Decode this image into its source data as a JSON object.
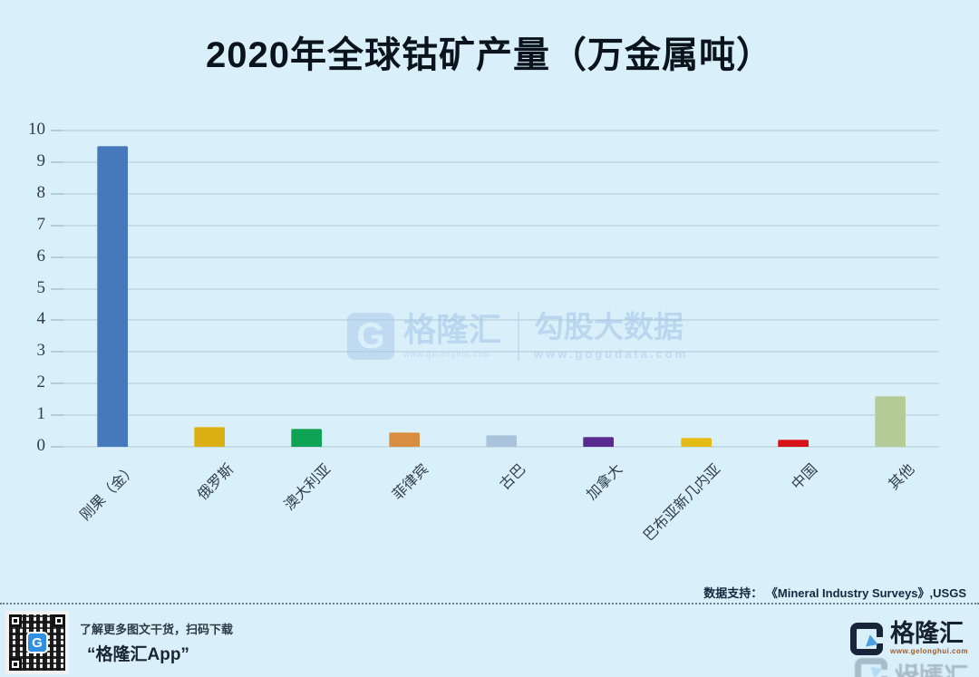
{
  "title": "2020年全球钴矿产量（万金属吨）",
  "chart_data": {
    "type": "bar",
    "title": "2020年全球钴矿产量（万金属吨）",
    "categories": [
      "刚果（金）",
      "俄罗斯",
      "澳大利亚",
      "菲律宾",
      "古巴",
      "加拿大",
      "巴布亚新几内亚",
      "中国",
      "其他"
    ],
    "values": [
      9.5,
      0.63,
      0.57,
      0.47,
      0.36,
      0.32,
      0.28,
      0.23,
      1.6
    ],
    "bar_colors": [
      "#4579bb",
      "#dcb015",
      "#0ea355",
      "#d78e42",
      "#a9c3dd",
      "#5a2b8e",
      "#e3ba16",
      "#d61318",
      "#b5cb97"
    ],
    "xlabel": "",
    "ylabel": "",
    "ylim": [
      0,
      10
    ],
    "yticks": [
      0,
      1,
      2,
      3,
      4,
      5,
      6,
      7,
      8,
      9,
      10
    ],
    "grid": true,
    "legend": false
  },
  "watermark": {
    "logo_letter": "G",
    "brand": "格隆汇",
    "brand_sub": "www.gelonghui.com",
    "right_title": "勾股大数据",
    "right_sub": "www.gogudata.com"
  },
  "source_note": {
    "label": "数据支持：",
    "text": "《Mineral Industry Surveys》,USGS"
  },
  "footer": {
    "qr_caption_line1": "了解更多图文干货，扫码下载",
    "qr_caption_line2": "“格隆汇App”",
    "logo_letter": "G",
    "logo_text": "格隆汇",
    "logo_sub": "www.gelonghui.com"
  },
  "colors": {
    "background": "#d9f0fb",
    "title": "#0b141c",
    "gridline": "#c6dbe8",
    "axis_text": "#2e3f4a"
  }
}
